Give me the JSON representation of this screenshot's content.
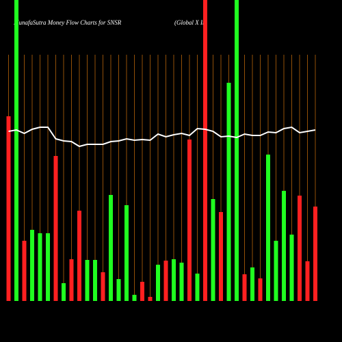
{
  "chart_data": {
    "type": "bar",
    "title": "MunafaSutra  Money Flow  Charts for SNSR",
    "subtitle": "(Global X   In",
    "values": [
      270,
      460,
      88,
      104,
      99,
      99,
      212,
      26,
      61,
      132,
      60,
      60,
      42,
      155,
      32,
      140,
      9,
      28,
      6,
      53,
      59,
      61,
      56,
      236,
      40,
      460,
      149,
      130,
      319,
      460,
      39,
      49,
      33,
      214,
      88,
      161,
      97,
      154,
      58,
      138
    ],
    "colors": [
      "#ff2020",
      "#20ff20",
      "#ff2020",
      "#20ff20",
      "#20ff20",
      "#20ff20",
      "#ff2020",
      "#20ff20",
      "#ff2020",
      "#ff2020",
      "#20ff20",
      "#20ff20",
      "#ff2020",
      "#20ff20",
      "#20ff20",
      "#20ff20",
      "#20ff20",
      "#ff2020",
      "#ff2020",
      "#20ff20",
      "#ff2020",
      "#20ff20",
      "#20ff20",
      "#ff2020",
      "#20ff20",
      "#ff2020",
      "#20ff20",
      "#ff2020",
      "#20ff20",
      "#20ff20",
      "#ff2020",
      "#20ff20",
      "#ff2020",
      "#20ff20",
      "#20ff20",
      "#20ff20",
      "#20ff20",
      "#ff2020",
      "#ff2020",
      "#ff2020"
    ],
    "line": {
      "color": "#ffffff",
      "values": [
        248,
        250,
        245,
        251,
        254,
        254,
        237,
        234,
        233,
        226,
        229,
        229,
        229,
        233,
        234,
        237,
        235,
        236,
        235,
        244,
        240,
        243,
        245,
        242,
        252,
        251,
        248,
        240,
        241,
        239,
        244,
        242,
        242,
        247,
        246,
        252,
        254,
        246,
        248,
        250
      ]
    },
    "ylim": [
      0,
      440
    ],
    "grid_color": "#b8650a"
  }
}
